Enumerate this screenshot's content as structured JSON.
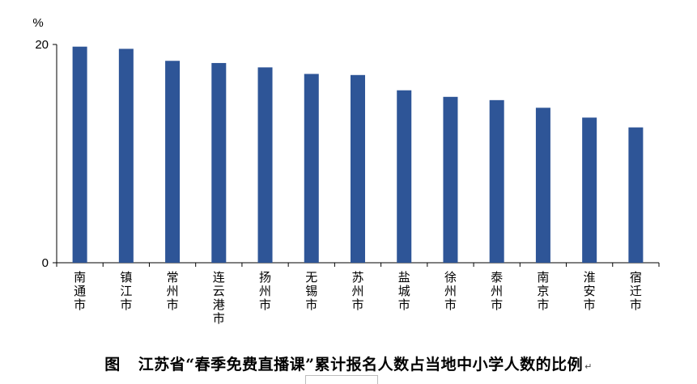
{
  "chart_data": {
    "type": "bar",
    "ylabel": "%",
    "ylim": [
      0,
      20
    ],
    "yticks": [
      0,
      20
    ],
    "categories": [
      "南通市",
      "镇江市",
      "常州市",
      "连云港市",
      "扬州市",
      "无锡市",
      "苏州市",
      "盐城市",
      "徐州市",
      "泰州市",
      "南京市",
      "淮安市",
      "宿迁市"
    ],
    "values": [
      19.8,
      19.6,
      18.5,
      18.3,
      17.9,
      17.3,
      17.2,
      15.8,
      15.2,
      14.9,
      14.2,
      13.3,
      12.4
    ],
    "bar_color": "#2e5597",
    "grid": false,
    "legend": "none"
  },
  "caption": {
    "prefix": "图",
    "text": "江苏省“春季免费直播课”累计报名人数占当地中小学人数的比例",
    "return_mark": "↵"
  }
}
